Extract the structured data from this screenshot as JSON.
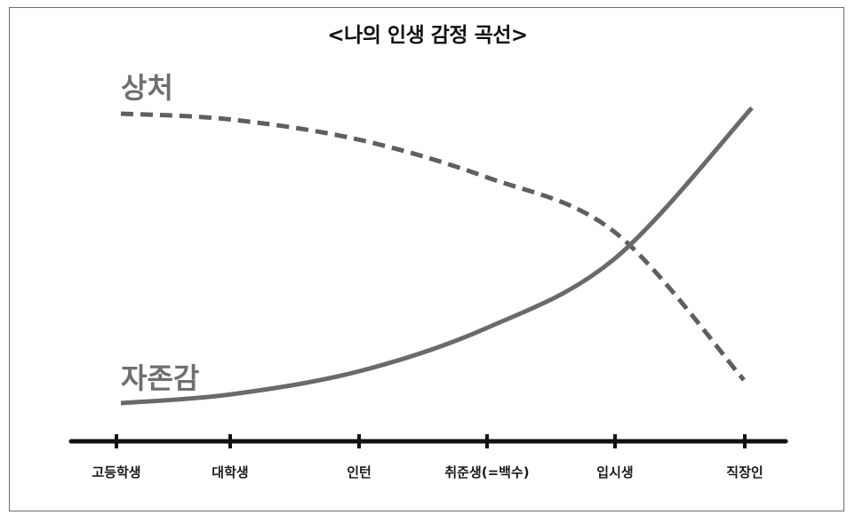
{
  "chart_data": {
    "type": "line",
    "title": "<나의 인생 감정 곡선>",
    "categories": [
      "고등학생",
      "대학생",
      "인턴",
      "취준생(=백수)",
      "입시생",
      "직장인"
    ],
    "series": [
      {
        "name": "상처",
        "style": "dashed",
        "color": "#5f5f5f",
        "values": [
          10,
          9.8,
          9.1,
          7.8,
          5.9,
          0.8
        ]
      },
      {
        "name": "자존감",
        "style": "solid",
        "color": "#6a6a6a",
        "values": [
          0,
          0.3,
          1.1,
          2.6,
          5.0,
          10.2
        ]
      }
    ],
    "xlabel": "",
    "ylabel": "",
    "ylim": [
      -0.5,
      10.5
    ],
    "grid": false,
    "legend": "direct labels on the left"
  }
}
